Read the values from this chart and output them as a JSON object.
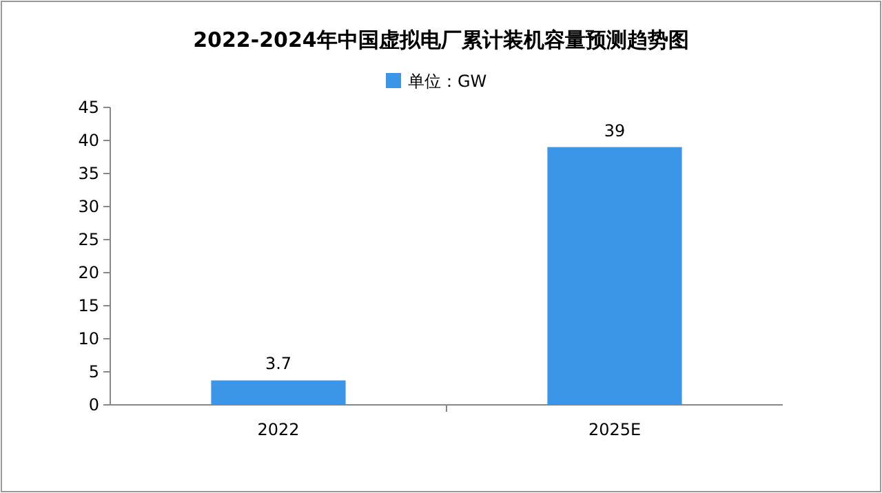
{
  "chart_data": {
    "type": "bar",
    "title": "2022-2024年中国虚拟电厂累计装机容量预测趋势图",
    "categories": [
      "2022",
      "2025E"
    ],
    "series": [
      {
        "name": "单位：GW",
        "color": "#3c96e8",
        "values": [
          3.7,
          39
        ]
      }
    ],
    "ylim": [
      0,
      45
    ],
    "yticks": [
      0,
      5,
      10,
      15,
      20,
      25,
      30,
      35,
      40,
      45
    ],
    "data_labels": true,
    "legend": "top",
    "grid": false
  }
}
